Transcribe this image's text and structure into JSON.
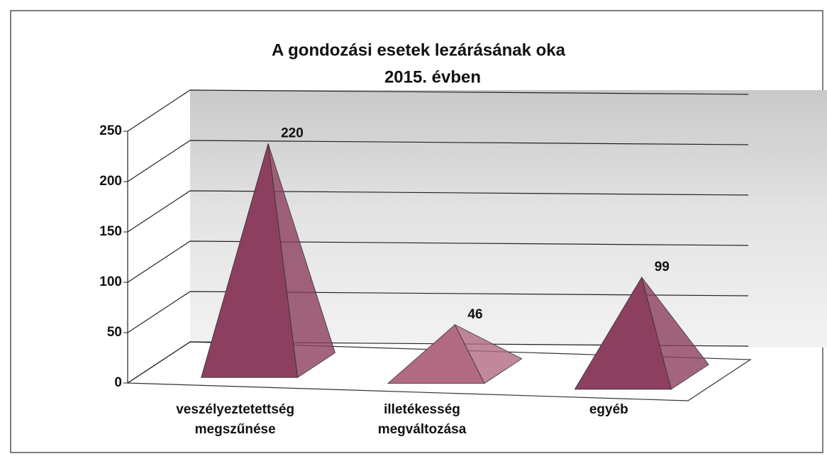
{
  "chart_data": {
    "type": "pyramid",
    "title": [
      "A gondozási esetek lezárásának oka",
      "2015. évben"
    ],
    "categories": [
      [
        "veszélyeztetettség",
        "megszűnése"
      ],
      [
        "illetékesség",
        "megváltozása"
      ],
      [
        "egyéb"
      ]
    ],
    "values": [
      220,
      46,
      99
    ],
    "colors": [
      "#8c3f5e",
      "#b26a82",
      "#8c3f5e"
    ],
    "ylim": [
      0,
      250
    ],
    "yticks": [
      0,
      50,
      100,
      150,
      200,
      250
    ],
    "grid": true
  }
}
